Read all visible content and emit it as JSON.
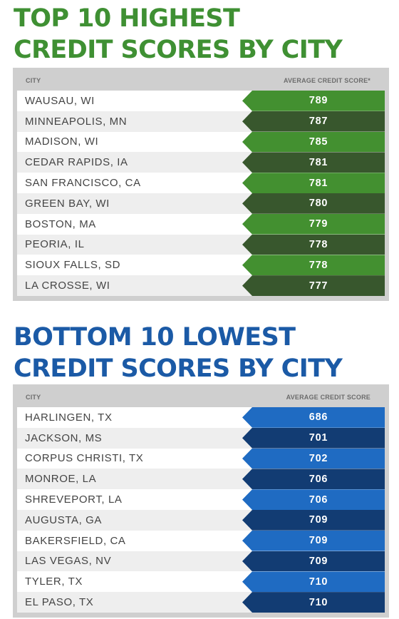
{
  "chart_data": [
    {
      "type": "table",
      "title": [
        "TOP 10 HIGHEST",
        "CREDIT SCORES BY CITY"
      ],
      "columns": [
        "CITY",
        "AVERAGE CREDIT SCORE*"
      ],
      "rows": [
        {
          "city": "WAUSAU, WI",
          "score": 789
        },
        {
          "city": "MINNEAPOLIS, MN",
          "score": 787
        },
        {
          "city": "MADISON, WI",
          "score": 785
        },
        {
          "city": "CEDAR RAPIDS, IA",
          "score": 781
        },
        {
          "city": "SAN FRANCISCO, CA",
          "score": 781
        },
        {
          "city": "GREEN BAY, WI",
          "score": 780
        },
        {
          "city": "BOSTON, MA",
          "score": 779
        },
        {
          "city": "PEORIA, IL",
          "score": 778
        },
        {
          "city": "SIOUX FALLS, SD",
          "score": 778
        },
        {
          "city": "LA CROSSE, WI",
          "score": 777
        }
      ],
      "colors": {
        "title": "#3f9033",
        "score_dark": "#38572d",
        "score_light": "#439030"
      }
    },
    {
      "type": "table",
      "title": [
        "BOTTOM 10 LOWEST",
        "CREDIT SCORES BY CITY"
      ],
      "columns": [
        "CITY",
        "AVERAGE CREDIT SCORE"
      ],
      "rows": [
        {
          "city": "HARLINGEN, TX",
          "score": 686
        },
        {
          "city": "JACKSON, MS",
          "score": 701
        },
        {
          "city": "CORPUS CHRISTI, TX",
          "score": 702
        },
        {
          "city": "MONROE, LA",
          "score": 706
        },
        {
          "city": "SHREVEPORT, LA",
          "score": 706
        },
        {
          "city": "AUGUSTA, GA",
          "score": 709
        },
        {
          "city": "BAKERSFIELD, CA",
          "score": 709
        },
        {
          "city": "LAS VEGAS, NV",
          "score": 709
        },
        {
          "city": "TYLER, TX",
          "score": 710
        },
        {
          "city": "EL PASO, TX",
          "score": 710
        }
      ],
      "colors": {
        "title": "#1b5aa6",
        "score_dark": "#123c73",
        "score_light": "#1f6bc2"
      }
    }
  ]
}
